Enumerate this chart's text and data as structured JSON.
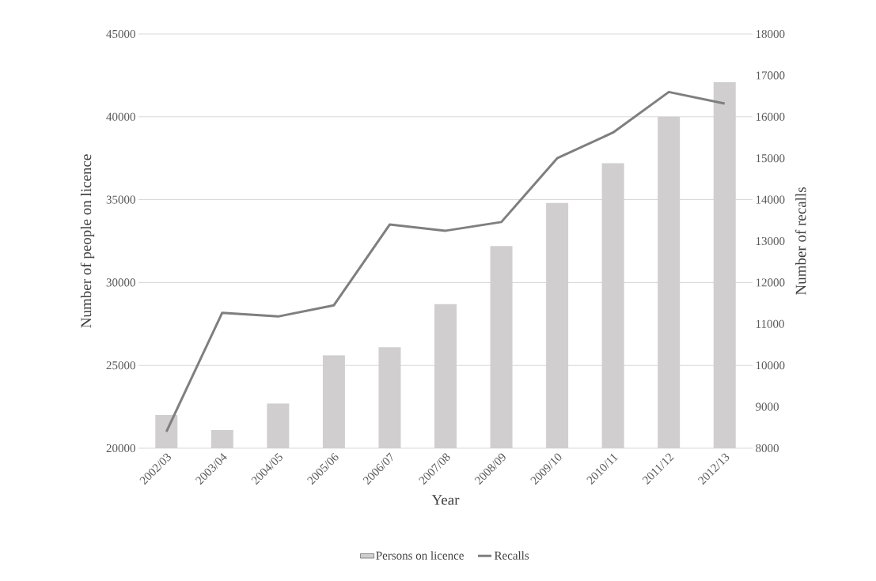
{
  "chart_data": {
    "type": "bar",
    "xlabel": "Year",
    "ylabel": "Number of people on licence",
    "y2label": "Number of recalls",
    "categories": [
      "2002/03",
      "2003/04",
      "2004/05",
      "2005/06",
      "2006/07",
      "2007/08",
      "2008/09",
      "2009/10",
      "2010/11",
      "2011/12",
      "2012/13"
    ],
    "series": [
      {
        "name": "Persons on licence",
        "color": "#d0cece",
        "values": [
          22000,
          21100,
          22700,
          25600,
          26100,
          28700,
          32200,
          34800,
          37200,
          40000,
          42100
        ]
      },
      {
        "name": "Recalls",
        "type": "line",
        "axis": "y2",
        "color": "#7f7f7f",
        "values": [
          8400,
          11270,
          11180,
          11450,
          13400,
          13250,
          13460,
          15000,
          15620,
          16600,
          16320
        ]
      }
    ],
    "ylim": [
      20000,
      45000
    ],
    "yticks": [
      20000,
      25000,
      30000,
      35000,
      40000,
      45000
    ],
    "y2lim": [
      8000,
      18000
    ],
    "y2ticks": [
      8000,
      9000,
      10000,
      11000,
      12000,
      13000,
      14000,
      15000,
      16000,
      17000,
      18000
    ],
    "grid": "y",
    "legend": "bottom",
    "marker": "none",
    "line_style": "solid"
  }
}
